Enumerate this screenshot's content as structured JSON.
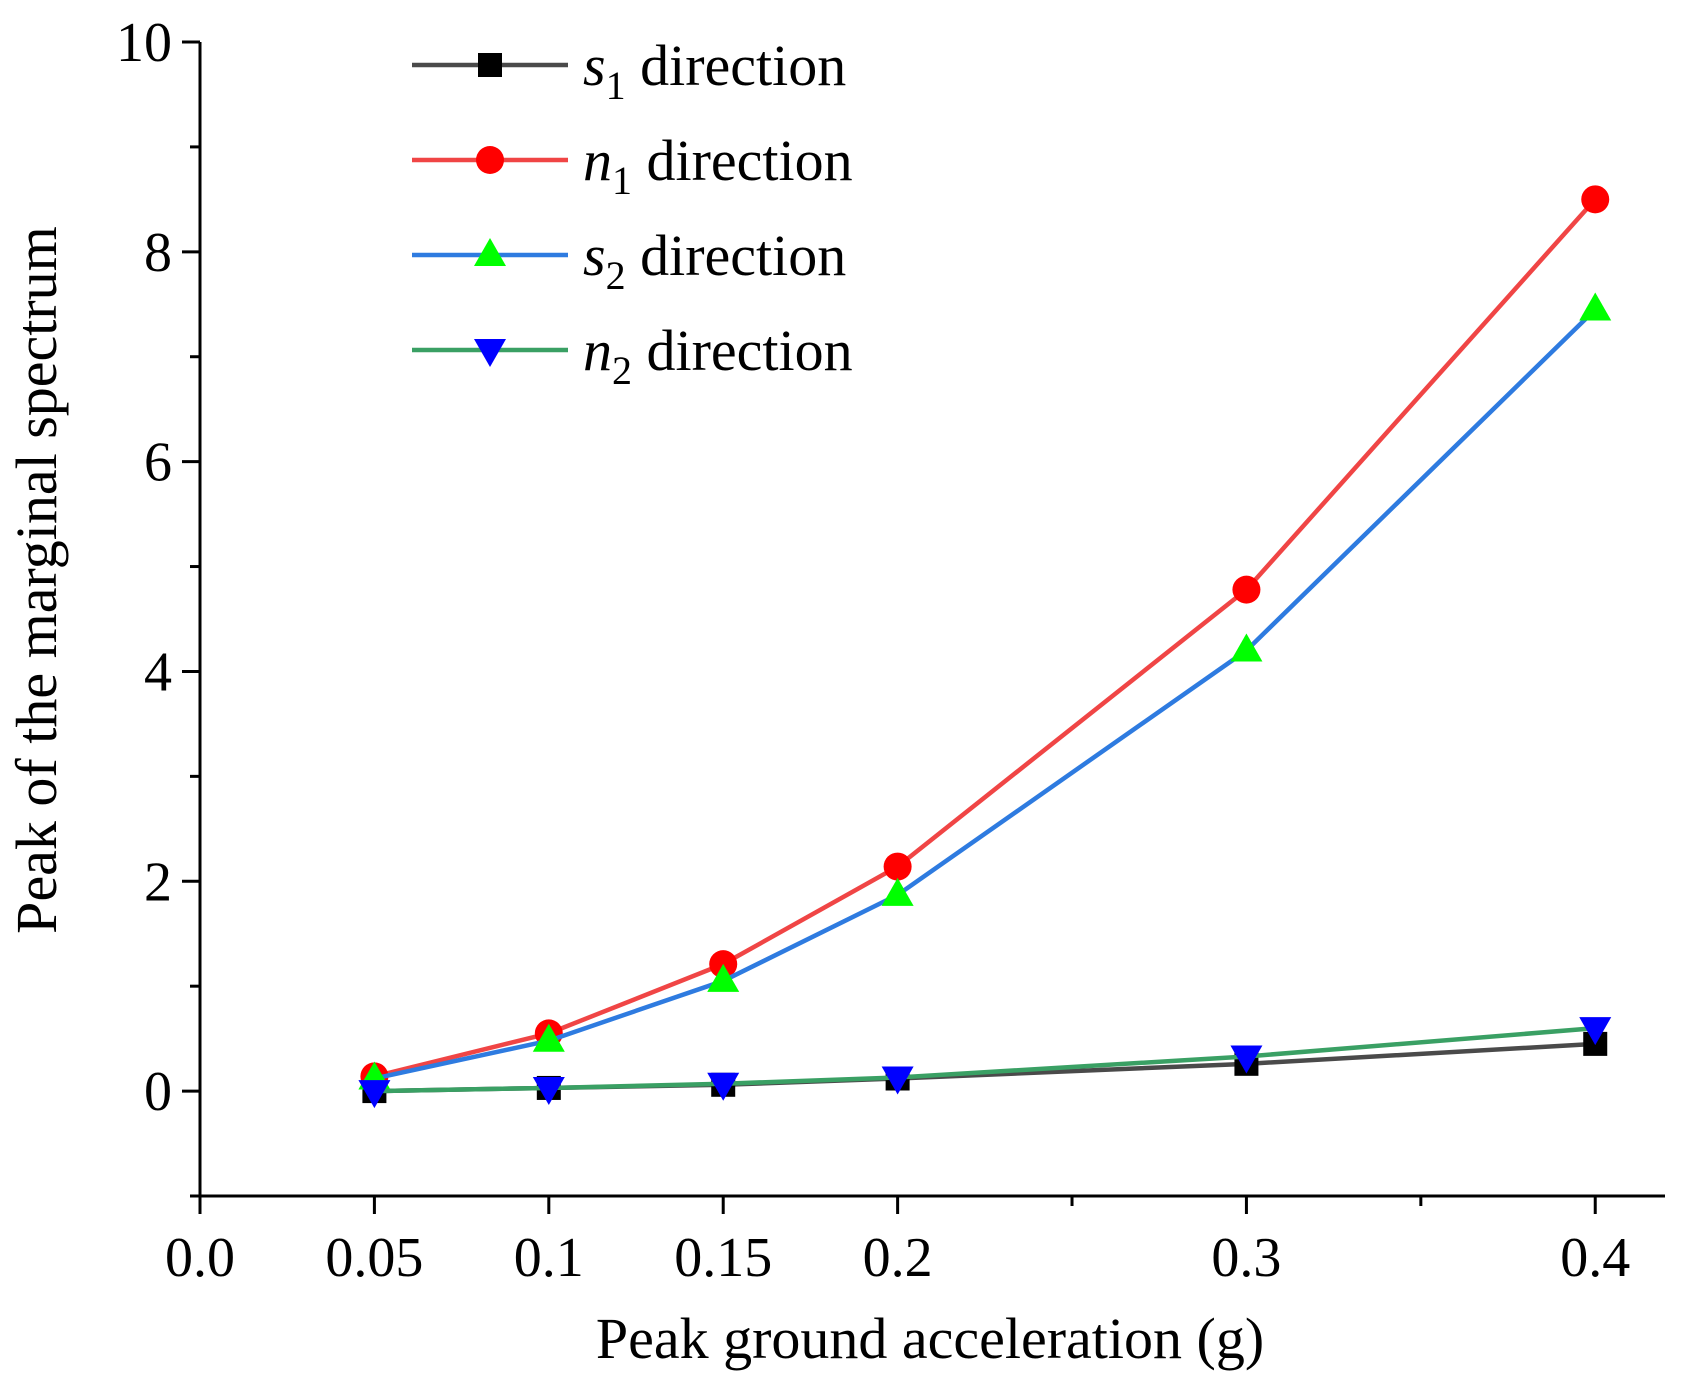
{
  "chart_data": {
    "type": "line",
    "title": "",
    "xlabel": "Peak ground acceleration (g)",
    "ylabel": "Peak of the marginal spectrum",
    "xlim": [
      0,
      0.42
    ],
    "ylim": [
      -1,
      10
    ],
    "x_major_ticks": [
      0.0,
      0.05,
      0.1,
      0.15,
      0.2,
      0.3,
      0.4
    ],
    "x_tick_labels": [
      "0.0",
      "0.05",
      "0.1",
      "0.15",
      "0.2",
      "0.3",
      "0.4"
    ],
    "x_minor_ticks": [
      0.25,
      0.35
    ],
    "y_major_ticks": [
      0,
      2,
      4,
      6,
      8,
      10
    ],
    "y_tick_labels": [
      "0",
      "2",
      "4",
      "6",
      "8",
      "10"
    ],
    "y_minor_ticks": [
      -1,
      1,
      3,
      5,
      7,
      9
    ],
    "legend_position": "top-left",
    "x": [
      0.05,
      0.1,
      0.15,
      0.2,
      0.3,
      0.4
    ],
    "series": [
      {
        "name": "s",
        "subscript": "1",
        "suffix": " direction",
        "line_color": "#4a4a4a",
        "marker_color": "#000000",
        "marker": "square",
        "values": [
          0.0,
          0.03,
          0.06,
          0.12,
          0.26,
          0.45
        ]
      },
      {
        "name": "n",
        "subscript": "1",
        "suffix": " direction",
        "line_color": "#f04545",
        "marker_color": "#ff0000",
        "marker": "circle",
        "values": [
          0.14,
          0.55,
          1.21,
          2.14,
          4.78,
          8.5
        ]
      },
      {
        "name": "s",
        "subscript": "2",
        "suffix": " direction",
        "line_color": "#2e7be0",
        "marker_color": "#00ff00",
        "marker": "triangle-up",
        "values": [
          0.12,
          0.48,
          1.05,
          1.87,
          4.2,
          7.45
        ]
      },
      {
        "name": "n",
        "subscript": "2",
        "suffix": " direction",
        "line_color": "#3aa064",
        "marker_color": "#0000ff",
        "marker": "triangle-down",
        "values": [
          0.0,
          0.03,
          0.07,
          0.13,
          0.33,
          0.6
        ]
      }
    ]
  }
}
